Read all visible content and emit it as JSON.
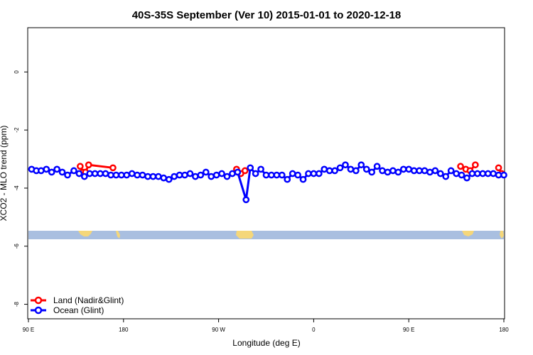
{
  "chart_data": {
    "type": "line",
    "title": "40S-35S September (Ver 10)   2015-01-01 to 2020-12-18",
    "xlabel": "Longitude (deg E)",
    "ylabel": "XCO2 - MLO trend (ppm)",
    "xlim": [
      90,
      540
    ],
    "ylim": [
      -8.5,
      1.5
    ],
    "xticks": [
      {
        "value": 90,
        "label": "90 E"
      },
      {
        "value": 180,
        "label": "180"
      },
      {
        "value": 270,
        "label": "90 W"
      },
      {
        "value": 360,
        "label": "0"
      },
      {
        "value": 450,
        "label": "90 E"
      },
      {
        "value": 540,
        "label": "180"
      }
    ],
    "yticks": [
      {
        "value": 0,
        "label": "0"
      },
      {
        "value": -2,
        "label": "-2"
      },
      {
        "value": -4,
        "label": "-4"
      },
      {
        "value": -6,
        "label": "-6"
      },
      {
        "value": -8,
        "label": "-8"
      }
    ],
    "grid": false,
    "legend_position": "bottom-left",
    "series": [
      {
        "name": "Land (Nadir&Glint)",
        "color": "#ff0000",
        "segments": [
          [
            [
              139,
              -3.25
            ],
            [
              141.5,
              -3.45
            ],
            [
              144,
              -3.45
            ],
            [
              147,
              -3.2
            ],
            [
              170,
              -3.3
            ]
          ],
          [
            [
              287,
              -3.35
            ],
            [
              291,
              -3.5
            ],
            [
              295,
              -3.4
            ]
          ],
          [
            [
              499,
              -3.25
            ],
            [
              504,
              -3.35
            ],
            [
              508,
              -3.4
            ],
            [
              513,
              -3.2
            ]
          ],
          [
            [
              535,
              -3.3
            ],
            [
              538,
              -3.5
            ]
          ]
        ]
      },
      {
        "name": "Ocean (Glint)",
        "color": "#0000ff",
        "points": [
          [
            93,
            -3.35
          ],
          [
            97.5,
            -3.4
          ],
          [
            102,
            -3.4
          ],
          [
            107,
            -3.35
          ],
          [
            112,
            -3.45
          ],
          [
            117,
            -3.35
          ],
          [
            122,
            -3.45
          ],
          [
            127,
            -3.55
          ],
          [
            133,
            -3.4
          ],
          [
            138,
            -3.5
          ],
          [
            143,
            -3.6
          ],
          [
            148,
            -3.5
          ],
          [
            153,
            -3.5
          ],
          [
            158,
            -3.5
          ],
          [
            163,
            -3.5
          ],
          [
            168,
            -3.55
          ],
          [
            173,
            -3.55
          ],
          [
            178,
            -3.55
          ],
          [
            183,
            -3.55
          ],
          [
            188,
            -3.5
          ],
          [
            193,
            -3.55
          ],
          [
            198,
            -3.55
          ],
          [
            203,
            -3.6
          ],
          [
            208,
            -3.6
          ],
          [
            213,
            -3.6
          ],
          [
            218,
            -3.65
          ],
          [
            223,
            -3.7
          ],
          [
            228,
            -3.6
          ],
          [
            233,
            -3.55
          ],
          [
            238,
            -3.55
          ],
          [
            243,
            -3.5
          ],
          [
            248,
            -3.6
          ],
          [
            253,
            -3.55
          ],
          [
            258,
            -3.45
          ],
          [
            263,
            -3.6
          ],
          [
            268,
            -3.55
          ],
          [
            273,
            -3.5
          ],
          [
            278,
            -3.6
          ],
          [
            283,
            -3.5
          ],
          [
            288,
            -3.45
          ],
          [
            296,
            -4.4
          ],
          [
            300,
            -3.3
          ],
          [
            305,
            -3.5
          ],
          [
            310,
            -3.35
          ],
          [
            315,
            -3.55
          ],
          [
            320,
            -3.55
          ],
          [
            325,
            -3.55
          ],
          [
            330,
            -3.55
          ],
          [
            335,
            -3.7
          ],
          [
            340,
            -3.5
          ],
          [
            345,
            -3.55
          ],
          [
            350,
            -3.7
          ],
          [
            355,
            -3.5
          ],
          [
            360,
            -3.5
          ],
          [
            365,
            -3.5
          ],
          [
            370,
            -3.35
          ],
          [
            375,
            -3.4
          ],
          [
            380,
            -3.4
          ],
          [
            385,
            -3.3
          ],
          [
            390,
            -3.2
          ],
          [
            395,
            -3.35
          ],
          [
            400,
            -3.4
          ],
          [
            405,
            -3.2
          ],
          [
            410,
            -3.35
          ],
          [
            415,
            -3.45
          ],
          [
            420,
            -3.25
          ],
          [
            425,
            -3.4
          ],
          [
            430,
            -3.45
          ],
          [
            435,
            -3.4
          ],
          [
            440,
            -3.45
          ],
          [
            445,
            -3.35
          ],
          [
            450,
            -3.35
          ],
          [
            455,
            -3.4
          ],
          [
            460,
            -3.4
          ],
          [
            465,
            -3.4
          ],
          [
            470,
            -3.45
          ],
          [
            475,
            -3.4
          ],
          [
            480,
            -3.5
          ],
          [
            485,
            -3.6
          ],
          [
            490,
            -3.4
          ],
          [
            495,
            -3.5
          ],
          [
            500,
            -3.55
          ],
          [
            505,
            -3.65
          ],
          [
            510,
            -3.5
          ],
          [
            515,
            -3.5
          ],
          [
            520,
            -3.5
          ],
          [
            525,
            -3.5
          ],
          [
            530,
            -3.5
          ],
          [
            535,
            -3.55
          ],
          [
            540,
            -3.55
          ]
        ]
      }
    ]
  }
}
